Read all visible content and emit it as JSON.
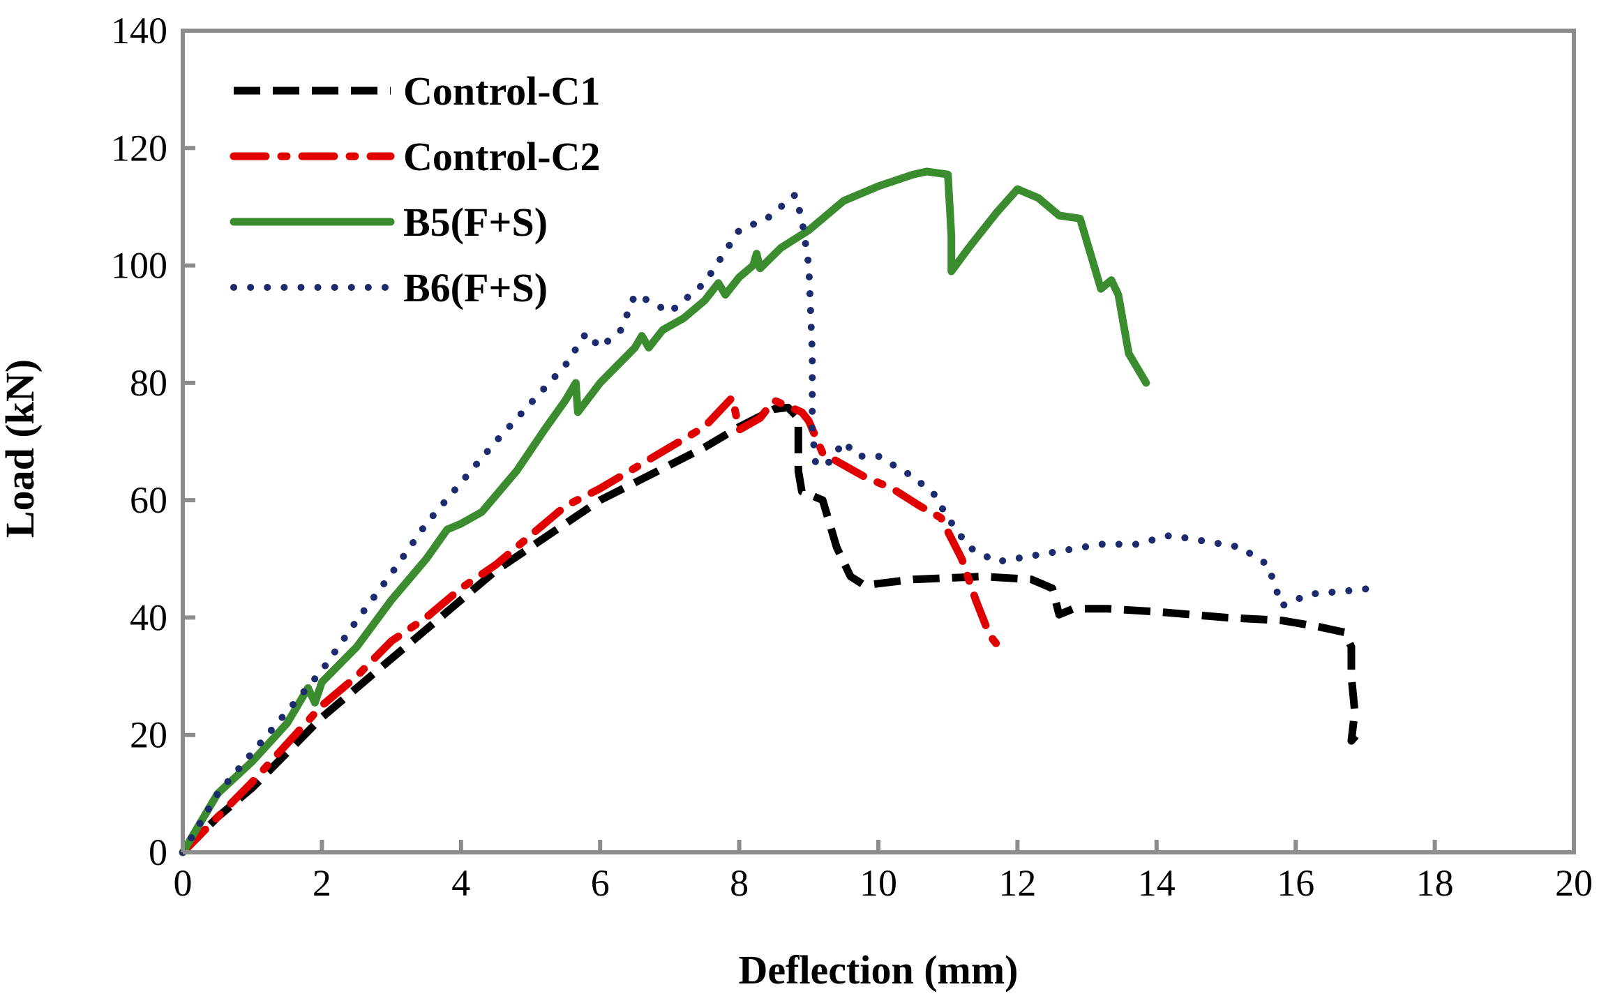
{
  "chart_data": {
    "type": "line",
    "xlabel": "Deflection (mm)",
    "ylabel": "Load (kN)",
    "xlim": [
      0,
      20
    ],
    "ylim": [
      0,
      140
    ],
    "xticks": [
      "0",
      "2",
      "4",
      "6",
      "8",
      "10",
      "12",
      "14",
      "16",
      "18",
      "20"
    ],
    "yticks": [
      "0",
      "20",
      "40",
      "60",
      "80",
      "100",
      "120",
      "140"
    ],
    "grid": false,
    "legend_position": "top-left",
    "series": [
      {
        "name": "Control-C1",
        "color": "#000000",
        "style": "dashed",
        "points": [
          [
            0,
            0
          ],
          [
            0.5,
            6
          ],
          [
            1,
            11
          ],
          [
            1.5,
            17
          ],
          [
            2,
            23
          ],
          [
            2.5,
            28
          ],
          [
            3,
            33
          ],
          [
            3.5,
            38
          ],
          [
            4,
            43
          ],
          [
            4.5,
            48
          ],
          [
            5,
            52
          ],
          [
            5.5,
            56
          ],
          [
            6,
            60
          ],
          [
            6.5,
            63
          ],
          [
            7,
            66
          ],
          [
            7.5,
            69
          ],
          [
            8,
            72.5
          ],
          [
            8.5,
            75.5
          ],
          [
            8.7,
            75.8
          ],
          [
            8.85,
            74
          ],
          [
            8.85,
            65
          ],
          [
            8.9,
            61.5
          ],
          [
            9.2,
            60
          ],
          [
            9.4,
            52
          ],
          [
            9.6,
            47
          ],
          [
            9.8,
            45.5
          ],
          [
            10.5,
            46.5
          ],
          [
            11.5,
            47
          ],
          [
            12.2,
            46.5
          ],
          [
            12.5,
            45
          ],
          [
            12.6,
            40.5
          ],
          [
            12.8,
            41.5
          ],
          [
            13.3,
            41.5
          ],
          [
            14,
            41
          ],
          [
            15,
            40
          ],
          [
            15.8,
            39.5
          ],
          [
            16.3,
            38.5
          ],
          [
            16.7,
            37.5
          ],
          [
            16.8,
            35
          ],
          [
            16.8,
            30
          ],
          [
            16.85,
            24
          ],
          [
            16.8,
            19
          ],
          [
            16.95,
            21
          ]
        ]
      },
      {
        "name": "Control-C2",
        "color": "#e00000",
        "style": "dash-dot",
        "points": [
          [
            0,
            0
          ],
          [
            0.5,
            6
          ],
          [
            1,
            12
          ],
          [
            1.5,
            18.5
          ],
          [
            2,
            25
          ],
          [
            2.5,
            30
          ],
          [
            3,
            36
          ],
          [
            3.5,
            40
          ],
          [
            4,
            45
          ],
          [
            4.5,
            49
          ],
          [
            5,
            54
          ],
          [
            5.5,
            59
          ],
          [
            6,
            62
          ],
          [
            6.5,
            65.5
          ],
          [
            7,
            69
          ],
          [
            7.5,
            72.5
          ],
          [
            7.9,
            77.5
          ],
          [
            8,
            72
          ],
          [
            8.3,
            74
          ],
          [
            8.5,
            77
          ],
          [
            8.9,
            75
          ],
          [
            9,
            73.5
          ],
          [
            9.2,
            68
          ],
          [
            9.5,
            66
          ],
          [
            9.8,
            64
          ],
          [
            10.2,
            62
          ],
          [
            10.6,
            59
          ],
          [
            10.9,
            57
          ],
          [
            11.2,
            50
          ],
          [
            11.4,
            43
          ],
          [
            11.6,
            37
          ],
          [
            11.8,
            34
          ]
        ]
      },
      {
        "name": "B5(F+S)",
        "color": "#3a8c2f",
        "style": "solid",
        "points": [
          [
            0,
            0
          ],
          [
            0.5,
            10
          ],
          [
            1,
            15.5
          ],
          [
            1.5,
            22
          ],
          [
            1.8,
            28
          ],
          [
            1.9,
            25.5
          ],
          [
            2,
            29
          ],
          [
            2.5,
            35
          ],
          [
            3,
            43
          ],
          [
            3.5,
            50
          ],
          [
            3.8,
            55
          ],
          [
            4,
            56
          ],
          [
            4.3,
            58
          ],
          [
            4.8,
            65
          ],
          [
            5.2,
            72
          ],
          [
            5.5,
            77
          ],
          [
            5.65,
            80
          ],
          [
            5.68,
            75
          ],
          [
            6,
            80
          ],
          [
            6.5,
            86
          ],
          [
            6.6,
            88
          ],
          [
            6.7,
            86
          ],
          [
            6.9,
            89
          ],
          [
            7.2,
            91
          ],
          [
            7.5,
            94
          ],
          [
            7.7,
            97
          ],
          [
            7.8,
            95
          ],
          [
            8,
            98
          ],
          [
            8.2,
            100
          ],
          [
            8.25,
            102
          ],
          [
            8.3,
            99.5
          ],
          [
            8.6,
            103
          ],
          [
            9,
            106
          ],
          [
            9.5,
            111
          ],
          [
            10,
            113.5
          ],
          [
            10.5,
            115.5
          ],
          [
            10.7,
            116
          ],
          [
            11,
            115.5
          ],
          [
            11.05,
            105
          ],
          [
            11.05,
            99
          ],
          [
            11.3,
            103
          ],
          [
            11.7,
            109
          ],
          [
            12,
            113
          ],
          [
            12.3,
            111.5
          ],
          [
            12.6,
            108.5
          ],
          [
            12.9,
            108
          ],
          [
            13.1,
            100
          ],
          [
            13.2,
            96
          ],
          [
            13.35,
            97.5
          ],
          [
            13.45,
            95
          ],
          [
            13.6,
            85
          ],
          [
            13.85,
            80
          ]
        ]
      },
      {
        "name": "B6(F+S)",
        "color": "#1c2a6e",
        "style": "dotted",
        "points": [
          [
            0,
            0
          ],
          [
            0.5,
            10
          ],
          [
            1,
            17
          ],
          [
            1.5,
            24
          ],
          [
            2,
            31
          ],
          [
            2.5,
            39.5
          ],
          [
            3,
            47.5
          ],
          [
            3.5,
            56
          ],
          [
            4,
            63
          ],
          [
            4.5,
            70
          ],
          [
            5,
            76.5
          ],
          [
            5.5,
            83
          ],
          [
            5.8,
            88.5
          ],
          [
            6,
            86
          ],
          [
            6.3,
            89
          ],
          [
            6.5,
            95
          ],
          [
            6.7,
            94
          ],
          [
            7,
            92
          ],
          [
            7.5,
            97
          ],
          [
            8,
            106
          ],
          [
            8.4,
            108
          ],
          [
            8.8,
            112
          ],
          [
            8.9,
            108
          ],
          [
            9,
            100
          ],
          [
            9.05,
            85
          ],
          [
            9.05,
            72
          ],
          [
            9.1,
            66
          ],
          [
            9.3,
            66.5
          ],
          [
            9.5,
            70
          ],
          [
            9.7,
            67.5
          ],
          [
            10,
            67.5
          ],
          [
            10.5,
            64
          ],
          [
            10.8,
            61
          ],
          [
            11,
            57
          ],
          [
            11.3,
            52
          ],
          [
            11.7,
            49.5
          ],
          [
            12.2,
            50.5
          ],
          [
            12.7,
            51.5
          ],
          [
            13.2,
            52.5
          ],
          [
            13.7,
            52.5
          ],
          [
            14.2,
            54
          ],
          [
            14.7,
            53
          ],
          [
            15.2,
            52
          ],
          [
            15.6,
            49
          ],
          [
            15.8,
            42
          ],
          [
            16.2,
            44
          ],
          [
            16.7,
            44.5
          ],
          [
            17.1,
            45
          ]
        ]
      }
    ]
  }
}
